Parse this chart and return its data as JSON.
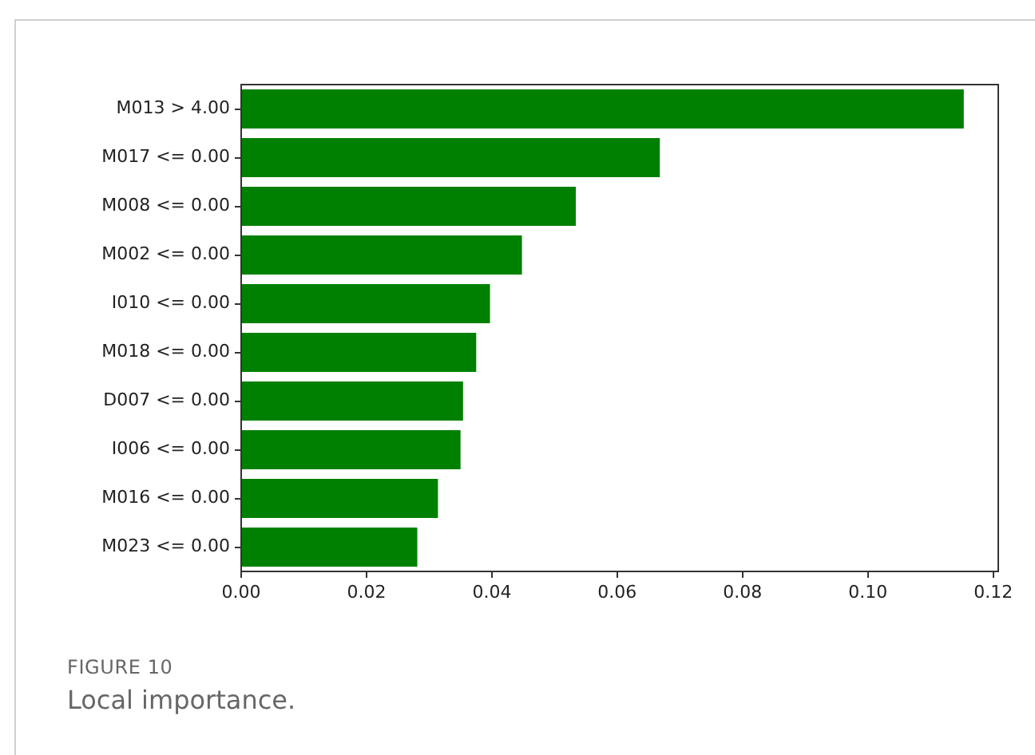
{
  "chart_data": {
    "type": "bar",
    "orientation": "horizontal",
    "categories": [
      "M013 > 4.00",
      "M017 <= 0.00",
      "M008 <= 0.00",
      "M002 <= 0.00",
      "I010 <= 0.00",
      "M018 <= 0.00",
      "D007 <= 0.00",
      "I006 <= 0.00",
      "M016 <= 0.00",
      "M023 <= 0.00"
    ],
    "values": [
      0.1153,
      0.0668,
      0.0534,
      0.0448,
      0.0397,
      0.0375,
      0.0354,
      0.035,
      0.0314,
      0.0281
    ],
    "color": "#008000",
    "xlim": [
      0,
      0.1208
    ],
    "xticks": [
      {
        "value": 0,
        "label": "0.00"
      },
      {
        "value": 0.02,
        "label": "0.02"
      },
      {
        "value": 0.04,
        "label": "0.04"
      },
      {
        "value": 0.06,
        "label": "0.06"
      },
      {
        "value": 0.08,
        "label": "0.08"
      },
      {
        "value": 0.1,
        "label": "0.10"
      },
      {
        "value": 0.12,
        "label": "0.12"
      }
    ],
    "grid": false,
    "legend": false,
    "annotations": [
      "FIGURE 10",
      "Local importance."
    ]
  }
}
